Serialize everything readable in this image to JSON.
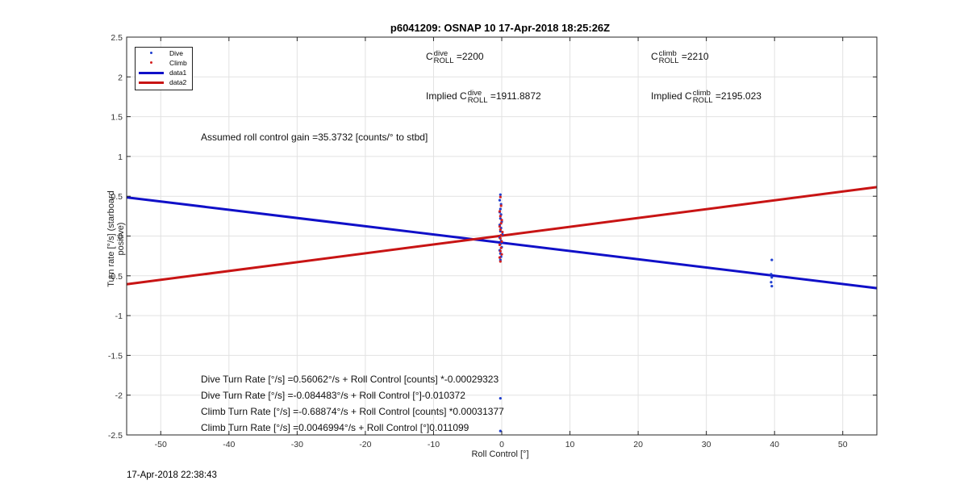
{
  "chart_data": {
    "type": "scatter",
    "title": "p6041209: OSNAP 10 17-Apr-2018 18:25:26Z",
    "xlabel": "Roll Control [°]",
    "ylabel": "Turn rate [°/s] (starboard positive)",
    "xlim": [
      -55,
      55
    ],
    "ylim": [
      -2.5,
      2.5
    ],
    "xticks": [
      -50,
      -40,
      -30,
      -20,
      -10,
      0,
      10,
      20,
      30,
      40,
      50
    ],
    "yticks": [
      -2.5,
      -2,
      -1.5,
      -1,
      -0.5,
      0,
      0.5,
      1,
      1.5,
      2,
      2.5
    ],
    "grid": true,
    "legend_location": "top-left",
    "series": [
      {
        "name": "Dive",
        "kind": "points",
        "color": "#1f3fd0",
        "points": [
          [
            -0.2,
            0.52
          ],
          [
            -0.3,
            0.45
          ],
          [
            -0.1,
            0.4
          ],
          [
            -0.2,
            0.34
          ],
          [
            -0.3,
            0.3
          ],
          [
            -0.1,
            0.27
          ],
          [
            -0.2,
            0.22
          ],
          [
            0.0,
            0.18
          ],
          [
            -0.3,
            0.14
          ],
          [
            -0.1,
            0.1
          ],
          [
            -0.2,
            0.06
          ],
          [
            0.1,
            0.02
          ],
          [
            -0.3,
            -0.02
          ],
          [
            -0.1,
            -0.06
          ],
          [
            -0.2,
            -0.1
          ],
          [
            0.0,
            -0.14
          ],
          [
            -0.3,
            -0.18
          ],
          [
            -0.2,
            -0.22
          ],
          [
            -0.1,
            -0.26
          ],
          [
            -0.2,
            -0.3
          ],
          [
            -0.2,
            -2.04
          ],
          [
            -0.2,
            -2.45
          ],
          [
            39.6,
            -0.3
          ],
          [
            39.5,
            -0.48
          ],
          [
            39.6,
            -0.52
          ],
          [
            39.5,
            -0.58
          ],
          [
            39.6,
            -0.63
          ]
        ]
      },
      {
        "name": "Climb",
        "kind": "points",
        "color": "#d42020",
        "points": [
          [
            -0.2,
            0.49
          ],
          [
            -0.1,
            0.38
          ],
          [
            -0.3,
            0.31
          ],
          [
            -0.2,
            0.25
          ],
          [
            0.0,
            0.2
          ],
          [
            -0.1,
            0.16
          ],
          [
            -0.3,
            0.12
          ],
          [
            -0.2,
            0.08
          ],
          [
            0.1,
            0.05
          ],
          [
            -0.1,
            0.01
          ],
          [
            -0.2,
            -0.03
          ],
          [
            0.0,
            -0.07
          ],
          [
            -0.3,
            -0.11
          ],
          [
            -0.1,
            -0.15
          ],
          [
            -0.2,
            -0.19
          ],
          [
            0.0,
            -0.23
          ],
          [
            -0.3,
            -0.27
          ],
          [
            -0.2,
            -0.32
          ]
        ]
      },
      {
        "name": "data1",
        "kind": "line",
        "color": "#1010c8",
        "points": [
          [
            -55,
            0.4859
          ],
          [
            55,
            -0.6551
          ]
        ]
      },
      {
        "name": "data2",
        "kind": "line",
        "color": "#c81414",
        "points": [
          [
            -55,
            -0.6058
          ],
          [
            55,
            0.6152
          ]
        ]
      }
    ],
    "annotations": {
      "c_roll_dive": {
        "label": "C",
        "sup": "dive",
        "sub": "ROLL",
        "value": "=2200"
      },
      "c_roll_climb": {
        "label": "C",
        "sup": "climb",
        "sub": "ROLL",
        "value": "=2210"
      },
      "implied_dive": {
        "prefix": "Implied C",
        "sup": "dive",
        "sub": "ROLL",
        "value": "=1911.8872"
      },
      "implied_climb": {
        "prefix": "Implied C",
        "sup": "climb",
        "sub": "ROLL",
        "value": "=2195.023"
      },
      "gain": "Assumed roll control gain =35.3732 [counts/° to stbd]",
      "fit_lines": [
        "Dive Turn Rate [°/s] =0.56062°/s + Roll Control [counts] *-0.00029323",
        "Dive Turn Rate [°/s] =-0.084483°/s + Roll Control [°]-0.010372",
        "Climb Turn Rate [°/s] =-0.68874°/s + Roll Control [counts] *0.00031377",
        "Climb Turn Rate [°/s] =0.0046994°/s + Roll Control [°]0.011099"
      ]
    }
  },
  "footer": {
    "timestamp": "17-Apr-2018 22:38:43"
  }
}
